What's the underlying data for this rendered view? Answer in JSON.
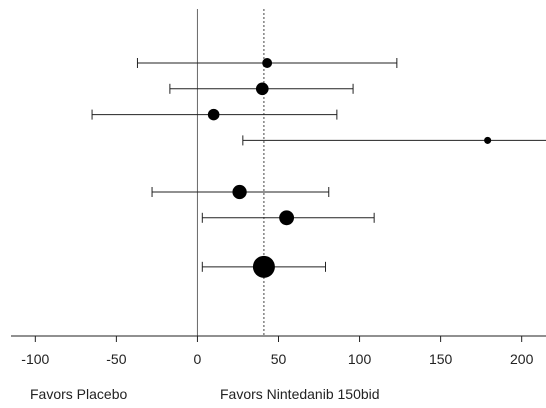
{
  "chart_data": {
    "type": "forest",
    "xlim": [
      -115,
      215
    ],
    "xticks": [
      -100,
      -50,
      0,
      50,
      100,
      150,
      200
    ],
    "tick_labels": [
      "-100",
      "-50",
      "0",
      "50",
      "100",
      "150",
      "200"
    ],
    "reference_line": 0,
    "overall_estimate_line": 41,
    "rows": [
      {
        "estimate": 43,
        "lower": -37,
        "upper": 123,
        "weight": 0.9
      },
      {
        "estimate": 40,
        "lower": -17,
        "upper": 96,
        "weight": 1.15
      },
      {
        "estimate": 10,
        "lower": -65,
        "upper": 86,
        "weight": 1.05
      },
      {
        "estimate": 179,
        "lower": 28,
        "upper": 215,
        "weight": 0.65,
        "truncated_upper": true
      },
      {
        "estimate": 26,
        "lower": -28,
        "upper": 81,
        "weight": 1.3
      },
      {
        "estimate": 55,
        "lower": 3,
        "upper": 109,
        "weight": 1.35
      },
      {
        "estimate": 41,
        "lower": 3,
        "upper": 79,
        "weight": 2.0
      }
    ],
    "row_slots": [
      0,
      1,
      2,
      3,
      5,
      6,
      7.9
    ]
  },
  "footer": {
    "favors_left": "Favors Placebo",
    "favors_right": "Favors Nintedanib 150bid"
  }
}
